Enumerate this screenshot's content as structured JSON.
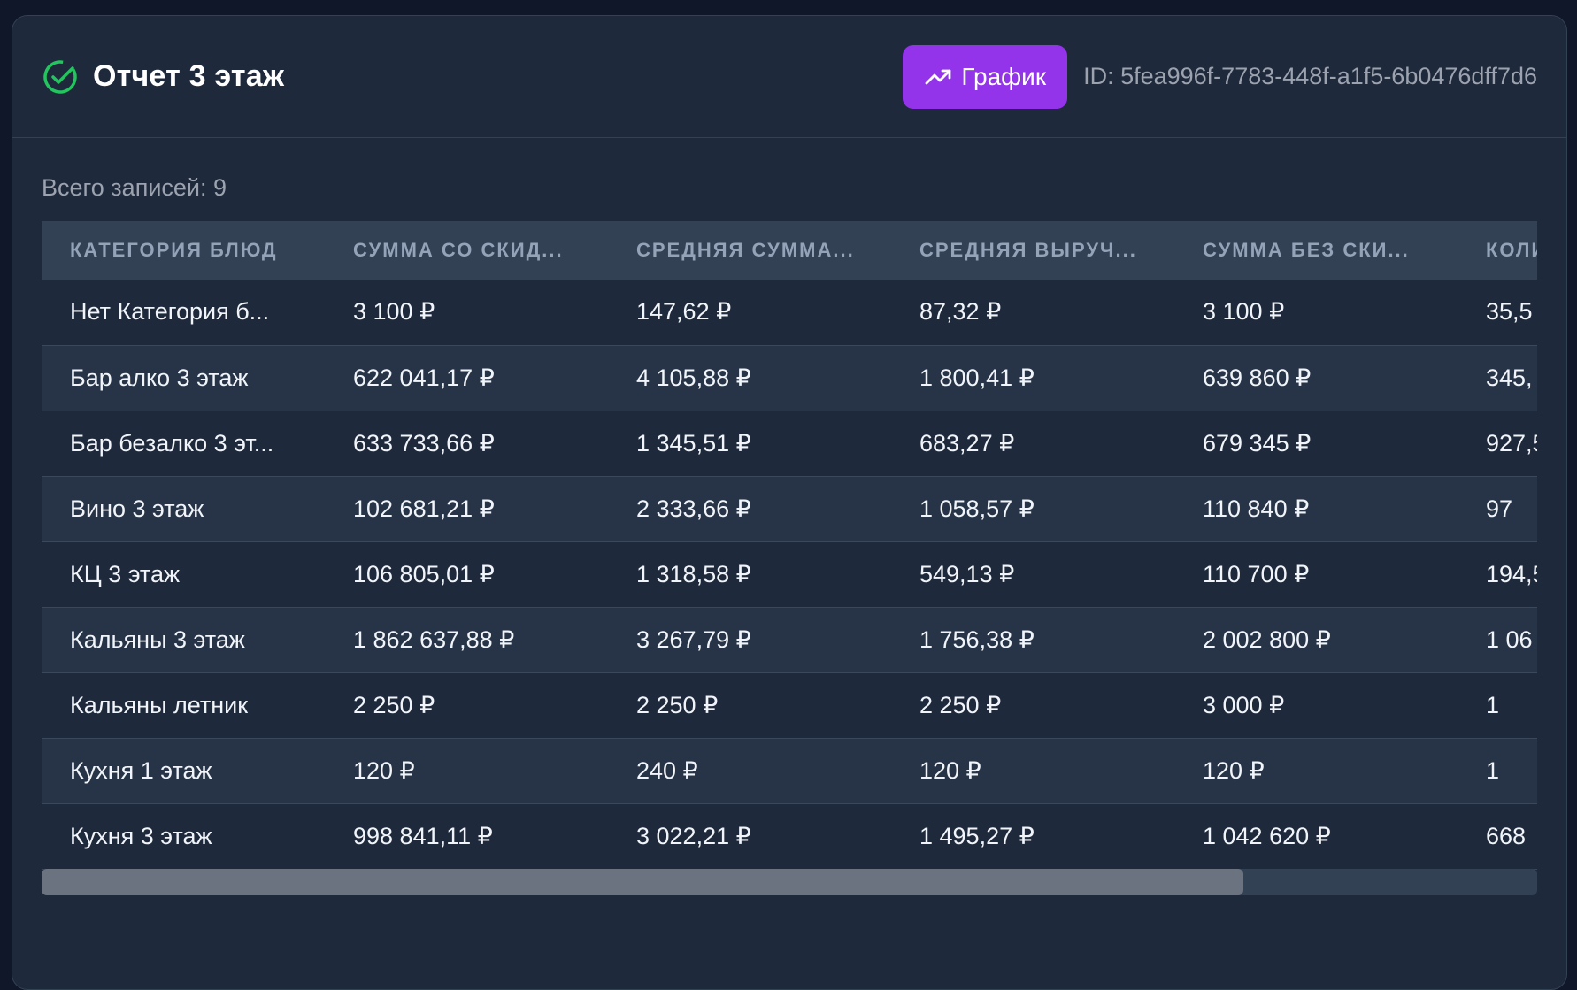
{
  "report": {
    "title": "Отчет 3 этаж",
    "chart_button": "График",
    "id_text": "ID: 5fea996f-7783-448f-a1f5-6b0476dff7d6",
    "records_text": "Всего записей: 9"
  },
  "icons": {
    "status": "check-circle-icon",
    "chart": "trending-up-icon"
  },
  "colors": {
    "accent": "#9333ea",
    "success": "#22c55e",
    "background": "#1e293b"
  },
  "table": {
    "headers": [
      "Категория блюд",
      "Сумма со скид...",
      "Средняя сумма...",
      "Средняя выруч...",
      "Сумма без ски...",
      "Коли"
    ],
    "rows": [
      [
        "Нет Категория б...",
        "3 100 ₽",
        "147,62 ₽",
        "87,32 ₽",
        "3 100 ₽",
        "35,5"
      ],
      [
        "Бар алко 3 этаж",
        "622 041,17 ₽",
        "4 105,88 ₽",
        "1 800,41 ₽",
        "639 860 ₽",
        "345,"
      ],
      [
        "Бар безалко 3 эт...",
        "633 733,66 ₽",
        "1 345,51 ₽",
        "683,27 ₽",
        "679 345 ₽",
        "927,5"
      ],
      [
        "Вино 3 этаж",
        "102 681,21 ₽",
        "2 333,66 ₽",
        "1 058,57 ₽",
        "110 840 ₽",
        "97"
      ],
      [
        "КЦ 3 этаж",
        "106 805,01 ₽",
        "1 318,58 ₽",
        "549,13 ₽",
        "110 700 ₽",
        "194,5"
      ],
      [
        "Кальяны 3 этаж",
        "1 862 637,88 ₽",
        "3 267,79 ₽",
        "1 756,38 ₽",
        "2 002 800 ₽",
        "1 06"
      ],
      [
        "Кальяны летник",
        "2 250 ₽",
        "2 250 ₽",
        "2 250 ₽",
        "3 000 ₽",
        "1"
      ],
      [
        "Кухня 1 этаж",
        "120 ₽",
        "240 ₽",
        "120 ₽",
        "120 ₽",
        "1"
      ],
      [
        "Кухня 3 этаж",
        "998 841,11 ₽",
        "3 022,21 ₽",
        "1 495,27 ₽",
        "1 042 620 ₽",
        "668"
      ]
    ]
  }
}
